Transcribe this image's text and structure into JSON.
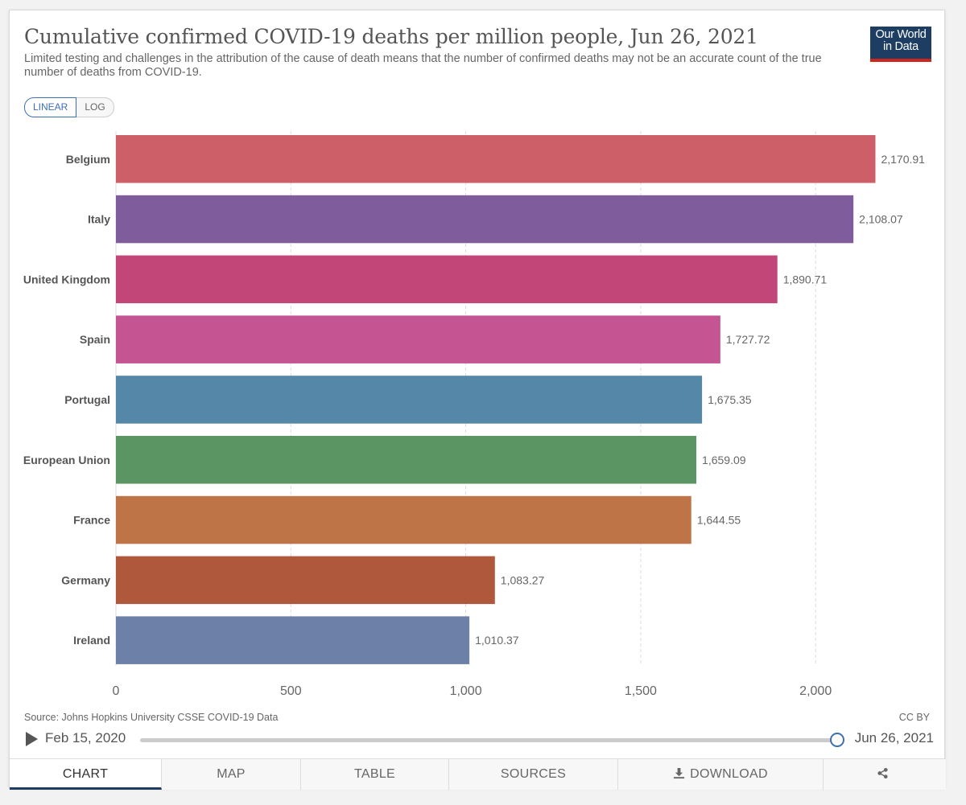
{
  "header": {
    "title": "Cumulative confirmed COVID-19 deaths per million people, Jun 26, 2021",
    "subtitle": "Limited testing and challenges in the attribution of the cause of death means that the number of confirmed deaths may not be an accurate count of the true number of deaths from COVID-19.",
    "logo_line1": "Our World",
    "logo_line2": "in Data"
  },
  "scale_toggle": {
    "linear": "LINEAR",
    "log": "LOG",
    "selected": "LINEAR"
  },
  "chart_data": {
    "type": "bar",
    "orientation": "horizontal",
    "categories": [
      "Belgium",
      "Italy",
      "United Kingdom",
      "Spain",
      "Portugal",
      "European Union",
      "France",
      "Germany",
      "Ireland"
    ],
    "values": [
      2170.91,
      2108.07,
      1890.71,
      1727.72,
      1675.35,
      1659.09,
      1644.55,
      1083.27,
      1010.37
    ],
    "value_labels": [
      "2,170.91",
      "2,108.07",
      "1,890.71",
      "1,727.72",
      "1,675.35",
      "1,659.09",
      "1,644.55",
      "1,083.27",
      "1,010.37"
    ],
    "colors": [
      "#cd5f68",
      "#7f5c9c",
      "#c24677",
      "#c55493",
      "#5587a8",
      "#5a9563",
      "#bf7448",
      "#b0583c",
      "#6d80a8"
    ],
    "xlim": [
      0,
      2200
    ],
    "xticks": [
      0,
      500,
      1000,
      1500,
      2000
    ],
    "xtick_labels": [
      "0",
      "500",
      "1,000",
      "1,500",
      "2,000"
    ],
    "grid": "vertical dashed"
  },
  "footer": {
    "source": "Source: Johns Hopkins University CSSE COVID-19 Data",
    "license": "CC BY"
  },
  "timeline": {
    "start_label": "Feb 15, 2020",
    "end_label": "Jun 26, 2021",
    "position": 1.0
  },
  "tabs": [
    {
      "label": "CHART",
      "active": true
    },
    {
      "label": "MAP"
    },
    {
      "label": "TABLE"
    },
    {
      "label": "SOURCES"
    },
    {
      "label": "DOWNLOAD",
      "icon": "download-icon"
    },
    {
      "label": "",
      "icon": "share-icon"
    }
  ]
}
